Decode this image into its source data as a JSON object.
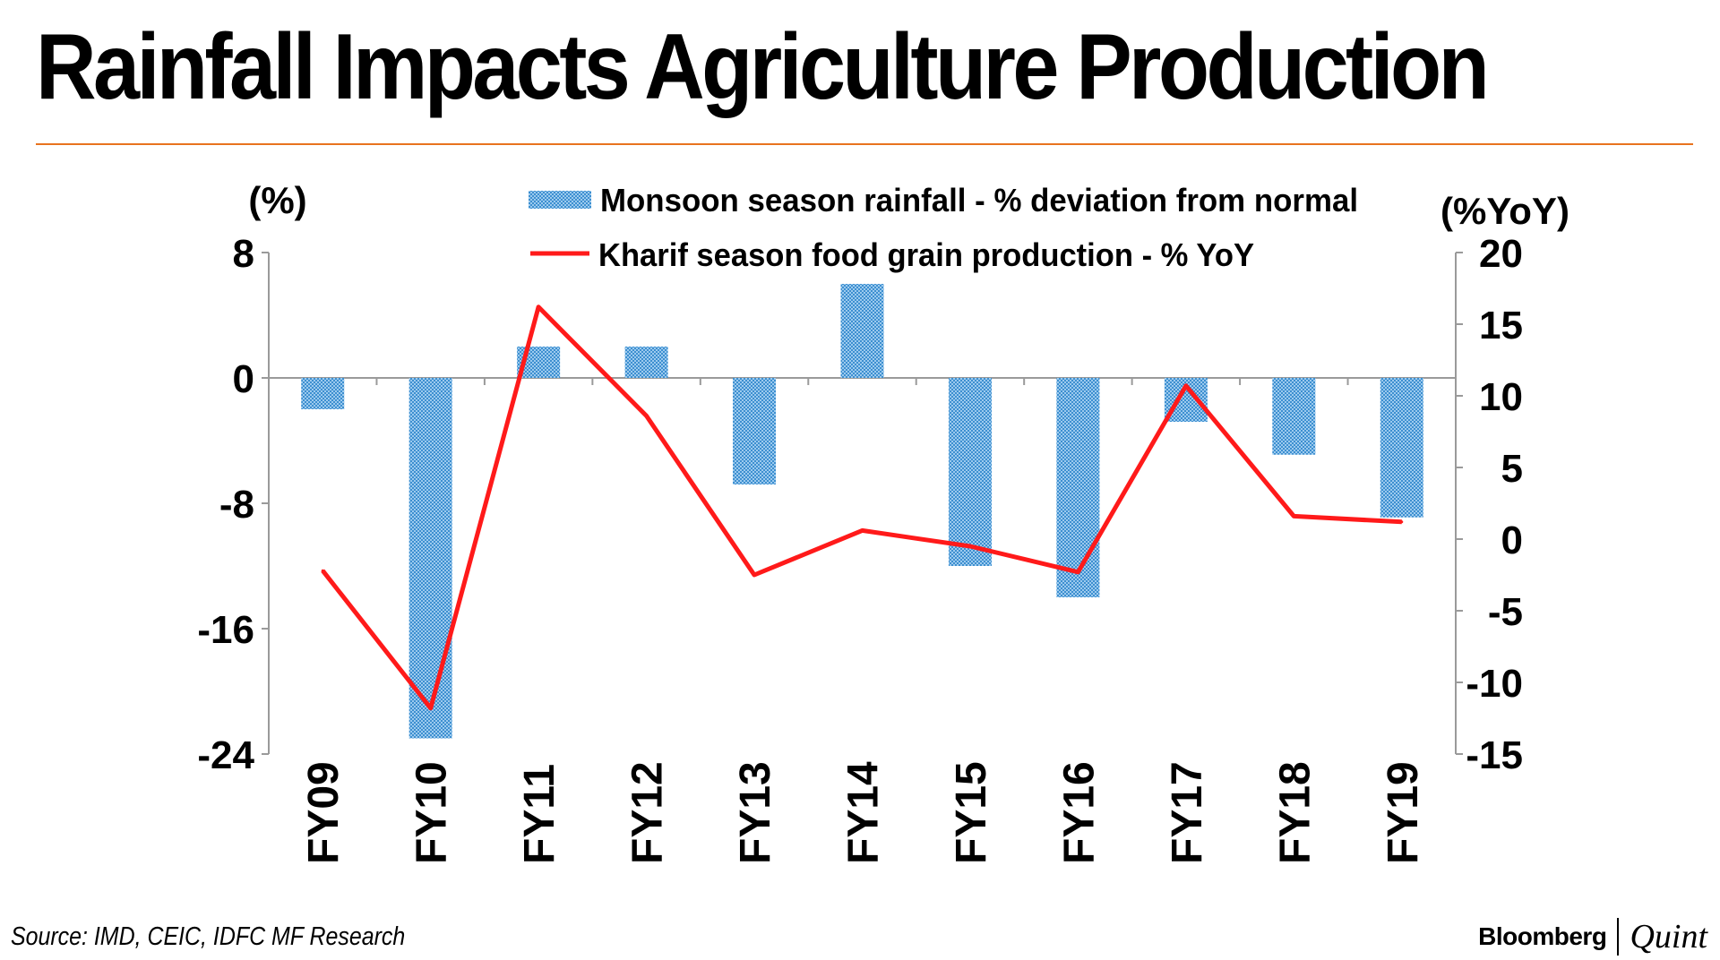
{
  "header": {
    "title": "Rainfall Impacts Agriculture Production"
  },
  "footer": {
    "source": "Source: IMD, CEIC, IDFC MF Research",
    "brand_primary": "Bloomberg",
    "brand_secondary": "Quint"
  },
  "colors": {
    "accent_rule": "#e8731e",
    "bar_fill": "#5aa6dc",
    "line": "#ff1a1a"
  },
  "chart_data": {
    "type": "bar+line",
    "title": "Rainfall Impacts Agriculture Production",
    "categories": [
      "FY09",
      "FY10",
      "FY11",
      "FY12",
      "FY13",
      "FY14",
      "FY15",
      "FY16",
      "FY17",
      "FY18",
      "FY19"
    ],
    "series": [
      {
        "name": "Monsoon season rainfall - % deviation from normal",
        "type": "bar",
        "axis": "left",
        "values": [
          -2,
          -23,
          2,
          2,
          -6.8,
          6,
          -12,
          -14,
          -2.8,
          -4.9,
          -8.9
        ]
      },
      {
        "name": "Kharif season food grain production - % YoY",
        "type": "line",
        "axis": "right",
        "values": [
          -2.2,
          -11.8,
          16.2,
          8.6,
          -2.5,
          0.6,
          -0.5,
          -2.3,
          10.7,
          1.6,
          1.2
        ]
      }
    ],
    "left_axis": {
      "label": "(%)",
      "min": -24,
      "max": 8,
      "ticks": [
        8,
        0,
        -8,
        -16,
        -24
      ],
      "tick_labels": [
        "8",
        "0",
        "-8",
        "-16",
        "-24"
      ]
    },
    "right_axis": {
      "label": "(%YoY)",
      "min": -15,
      "max": 20,
      "ticks": [
        20,
        15,
        10,
        5,
        0,
        -5,
        -10,
        -15
      ],
      "tick_labels": [
        "20",
        "15",
        "10",
        "5",
        "0",
        "-5",
        "-10",
        "-15"
      ]
    },
    "legend": [
      "Monsoon season rainfall - % deviation from normal",
      "Kharif season food grain production - % YoY"
    ],
    "legend_position": "top"
  }
}
